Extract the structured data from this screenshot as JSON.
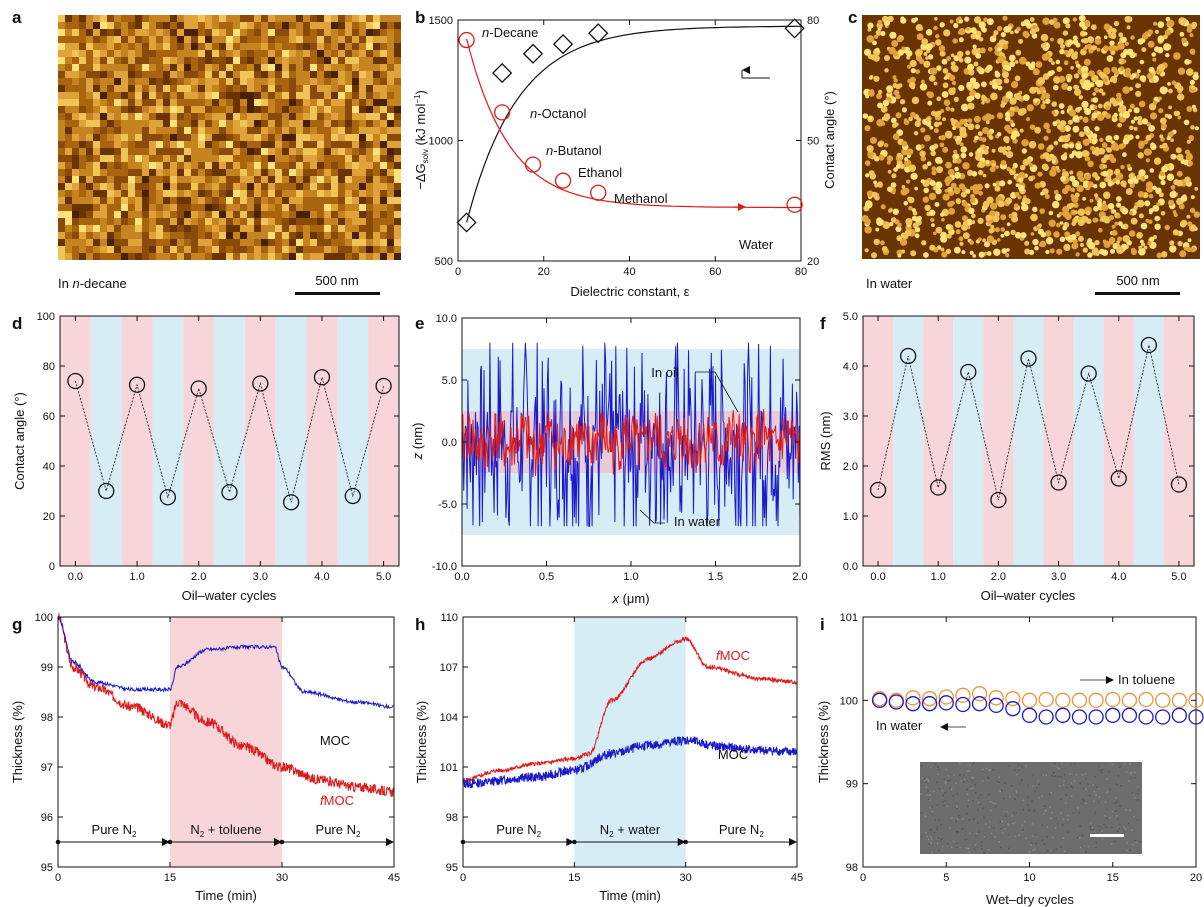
{
  "colors": {
    "red": "#dd1a1a",
    "blue": "#1a1acc",
    "orange": "#e8963a",
    "pink_band": "#f7d5d8",
    "blue_band": "#d6edf5",
    "afm_dark": "#5a2a00",
    "afm_light": "#ffe27a"
  },
  "chart_data": [
    {
      "panel": "a",
      "type": "image",
      "caption": "In n-decane",
      "caption_parts": [
        "In ",
        "n",
        "-decane"
      ],
      "scalebar": "500 nm"
    },
    {
      "panel": "b",
      "type": "scatter",
      "xlabel": "Dielectric constant, ε",
      "xlim": [
        0,
        80
      ],
      "xticks": [
        0,
        20,
        40,
        60,
        80
      ],
      "ylabel_left": "−ΔG_solv (kJ mol−1)",
      "ylabel_left_parts": [
        "−ΔG",
        "solv",
        " (kJ mol",
        "−1",
        ")"
      ],
      "ylim_left": [
        500,
        1500
      ],
      "yticks_left": [
        500,
        1000,
        1500
      ],
      "ylabel_right": "Contact angle (°)",
      "ylim_right": [
        20,
        80
      ],
      "yticks_right": [
        20,
        50,
        80
      ],
      "series": [
        {
          "marker": "diamond",
          "axis": "left",
          "x": [
            2.0,
            10.3,
            17.5,
            24.5,
            32.7,
            78.5
          ],
          "y": [
            660,
            1280,
            1360,
            1400,
            1445,
            1465
          ]
        },
        {
          "marker": "circle",
          "axis": "right",
          "x": [
            2.0,
            10.3,
            17.5,
            24.5,
            32.7,
            78.5
          ],
          "y": [
            75,
            57,
            44,
            40,
            37,
            34
          ]
        }
      ],
      "labels": [
        "n-Decane",
        "n-Octanol",
        "n-Butanol",
        "Ethanol",
        "Methanol",
        "Water"
      ],
      "label_parts": [
        [
          "n",
          "-Decane"
        ],
        [
          "n",
          "-Octanol"
        ],
        [
          "n",
          "-Butanol"
        ],
        [
          "",
          "Ethanol"
        ],
        [
          "",
          "Methanol"
        ],
        [
          "",
          "Water"
        ]
      ]
    },
    {
      "panel": "c",
      "type": "image",
      "caption": "In water",
      "scalebar": "500 nm"
    },
    {
      "panel": "d",
      "type": "scatter",
      "xlabel": "Oil–water cycles",
      "xlim": [
        -0.25,
        5.25
      ],
      "xticks": [
        "0.0",
        "1.0",
        "2.0",
        "3.0",
        "4.0",
        "5.0"
      ],
      "ylabel": "Contact angle (°)",
      "ylim": [
        0,
        100
      ],
      "yticks": [
        0,
        20,
        40,
        60,
        80,
        100
      ],
      "x": [
        0,
        0.5,
        1,
        1.5,
        2,
        2.5,
        3,
        3.5,
        4,
        4.5,
        5
      ],
      "y": [
        74,
        30,
        72.5,
        27.5,
        71,
        29.5,
        73,
        25.5,
        75.5,
        28,
        72
      ]
    },
    {
      "panel": "e",
      "type": "line",
      "xlabel": "x (μm)",
      "xlabel_parts": [
        "x",
        " (μm)"
      ],
      "xlim": [
        0,
        2
      ],
      "xticks": [
        "0.0",
        "0.5",
        "1.0",
        "1.5",
        "2.0"
      ],
      "ylabel": "z (nm)",
      "ylabel_parts": [
        "z",
        " (nm)"
      ],
      "ylim": [
        -10,
        10
      ],
      "yticks": [
        "-10.0",
        "-5.0",
        "0.0",
        "5.0",
        "10.0"
      ],
      "bands": [
        {
          "color": "blue",
          "range": [
            -7.5,
            7.5
          ]
        },
        {
          "color": "pink",
          "range": [
            -2.5,
            2.5
          ]
        }
      ],
      "series": [
        {
          "name": "In oil",
          "color": "red",
          "amplitude": 2.5
        },
        {
          "name": "In water",
          "color": "blue",
          "amplitude": 7.5
        }
      ]
    },
    {
      "panel": "f",
      "type": "scatter",
      "xlabel": "Oil–water cycles",
      "xlim": [
        -0.25,
        5.25
      ],
      "xticks": [
        "0.0",
        "1.0",
        "2.0",
        "3.0",
        "4.0",
        "5.0"
      ],
      "ylabel": "RMS (nm)",
      "ylim": [
        0,
        5
      ],
      "yticks": [
        "0.0",
        "1.0",
        "2.0",
        "3.0",
        "4.0",
        "5.0"
      ],
      "x": [
        0,
        0.5,
        1,
        1.5,
        2,
        2.5,
        3,
        3.5,
        4,
        4.5,
        5
      ],
      "y": [
        1.52,
        4.2,
        1.57,
        3.88,
        1.32,
        4.15,
        1.67,
        3.85,
        1.75,
        4.42,
        1.63
      ]
    },
    {
      "panel": "g",
      "type": "line",
      "xlabel": "Time (min)",
      "xlim": [
        0,
        45
      ],
      "xticks": [
        0,
        15,
        30,
        45
      ],
      "ylabel": "Thickness (%)",
      "ylim": [
        95,
        100
      ],
      "yticks": [
        95,
        96,
        97,
        98,
        99,
        100
      ],
      "shaded": [
        15,
        30
      ],
      "shade_color": "pink",
      "series": [
        {
          "name": "MOC",
          "color": "blue",
          "x": [
            0,
            2,
            5,
            10,
            15,
            16,
            20,
            25,
            29,
            30,
            33,
            40,
            45
          ],
          "y": [
            100,
            99.1,
            98.7,
            98.55,
            98.55,
            99.0,
            99.35,
            99.4,
            99.4,
            99.0,
            98.5,
            98.3,
            98.2
          ]
        },
        {
          "name": "fMOC",
          "name_parts": [
            "f",
            "MOC"
          ],
          "color": "red",
          "x": [
            0,
            2,
            5,
            10,
            15,
            16,
            20,
            25,
            30,
            35,
            40,
            45
          ],
          "y": [
            100,
            99.0,
            98.6,
            98.2,
            97.85,
            98.3,
            97.9,
            97.4,
            97.0,
            96.75,
            96.6,
            96.5
          ]
        }
      ],
      "phases": [
        "Pure  N2",
        "N2 + toluene",
        "Pure  N2"
      ]
    },
    {
      "panel": "h",
      "type": "line",
      "xlabel": "Time (min)",
      "xlim": [
        0,
        45
      ],
      "xticks": [
        0,
        15,
        30,
        45
      ],
      "ylabel": "Thickness (%)",
      "ylim": [
        95,
        110
      ],
      "yticks": [
        95,
        98,
        101,
        104,
        107,
        110
      ],
      "shaded": [
        15,
        30
      ],
      "shade_color": "blue",
      "series": [
        {
          "name": "fMOC",
          "name_parts": [
            "f",
            "MOC"
          ],
          "color": "red",
          "x": [
            0,
            5,
            10,
            15,
            17,
            20,
            25,
            29,
            30,
            33,
            40,
            45
          ],
          "y": [
            100.2,
            100.8,
            101.2,
            101.5,
            101.8,
            105.0,
            107.5,
            108.5,
            108.7,
            107.0,
            106.3,
            106.1
          ]
        },
        {
          "name": "MOC",
          "color": "blue",
          "x": [
            0,
            10,
            15,
            20,
            25,
            30,
            35,
            40,
            45
          ],
          "y": [
            100.0,
            100.4,
            100.8,
            101.8,
            102.3,
            102.6,
            102.2,
            102.0,
            101.9
          ]
        }
      ],
      "phases": [
        "Pure  N2",
        "N2 + water",
        "Pure  N2"
      ]
    },
    {
      "panel": "i",
      "type": "scatter",
      "xlabel": "Wet–dry cycles",
      "xlim": [
        0,
        20
      ],
      "xticks": [
        0,
        5,
        10,
        15,
        20
      ],
      "ylabel": "Thickness (%)",
      "ylim": [
        98,
        101
      ],
      "yticks": [
        98,
        99,
        100,
        101
      ],
      "series": [
        {
          "name": "In toluene",
          "color": "orange",
          "x": [
            1,
            2,
            3,
            4,
            5,
            6,
            7,
            8,
            9,
            10,
            11,
            12,
            13,
            14,
            15,
            16,
            17,
            18,
            19,
            20
          ],
          "y": [
            100.02,
            100.0,
            100.03,
            100.02,
            100.04,
            100.06,
            100.08,
            100.03,
            100.02,
            100.0,
            100.01,
            100.0,
            100.0,
            100.0,
            100.01,
            100.0,
            100.01,
            100.0,
            100.0,
            100.0
          ]
        },
        {
          "name": "In water",
          "color": "blue",
          "x": [
            1,
            2,
            3,
            4,
            5,
            6,
            7,
            8,
            9,
            10,
            11,
            12,
            13,
            14,
            15,
            16,
            17,
            18,
            19,
            20
          ],
          "y": [
            100.0,
            99.98,
            99.96,
            99.96,
            99.97,
            99.95,
            99.96,
            99.94,
            99.9,
            99.82,
            99.8,
            99.82,
            99.8,
            99.8,
            99.82,
            99.82,
            99.8,
            99.8,
            99.82,
            99.8
          ]
        }
      ],
      "inset_scalebar": true
    }
  ]
}
